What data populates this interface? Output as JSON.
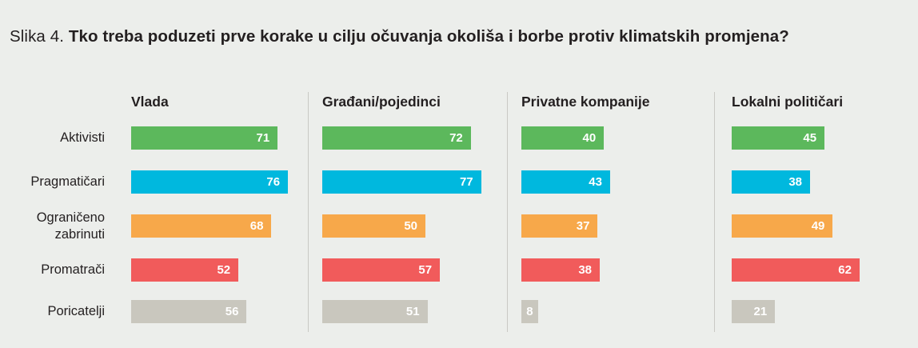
{
  "title": {
    "prefix": "Slika 4.",
    "text": "Tko treba poduzeti prve korake u cilju očuvanja okoliša i borbe protiv klimatskih promjena?"
  },
  "colors": {
    "Aktivisti": "#5cb85c",
    "Pragmatičari": "#00b8de",
    "Ograničeno zabrinuti": "#f7a84a",
    "Promatrači": "#f15b5b",
    "Poricatelji": "#c9c7be"
  },
  "chart_data": {
    "type": "bar",
    "orientation": "horizontal",
    "title": "Tko treba poduzeti prve korake u cilju očuvanja okoliša i borbe protiv klimatskih promjena?",
    "categories": [
      "Aktivisti",
      "Pragmatičari",
      "Ograničeno zabrinuti",
      "Promatrači",
      "Poricatelji"
    ],
    "category_lines": [
      [
        "Aktivisti"
      ],
      [
        "Pragmatičari"
      ],
      [
        "Ograničeno",
        "zabrinuti"
      ],
      [
        "Promatrači"
      ],
      [
        "Poricatelji"
      ]
    ],
    "panels": [
      {
        "name": "Vlada",
        "values": [
          71,
          76,
          68,
          52,
          56
        ]
      },
      {
        "name": "Građani/pojedinci",
        "values": [
          72,
          77,
          50,
          57,
          51
        ]
      },
      {
        "name": "Privatne kompanije",
        "values": [
          40,
          43,
          37,
          38,
          8
        ]
      },
      {
        "name": "Lokalni političari",
        "values": [
          45,
          38,
          49,
          62,
          21
        ]
      }
    ],
    "xlim": [
      0,
      100
    ],
    "grid": false,
    "legend": "none"
  }
}
